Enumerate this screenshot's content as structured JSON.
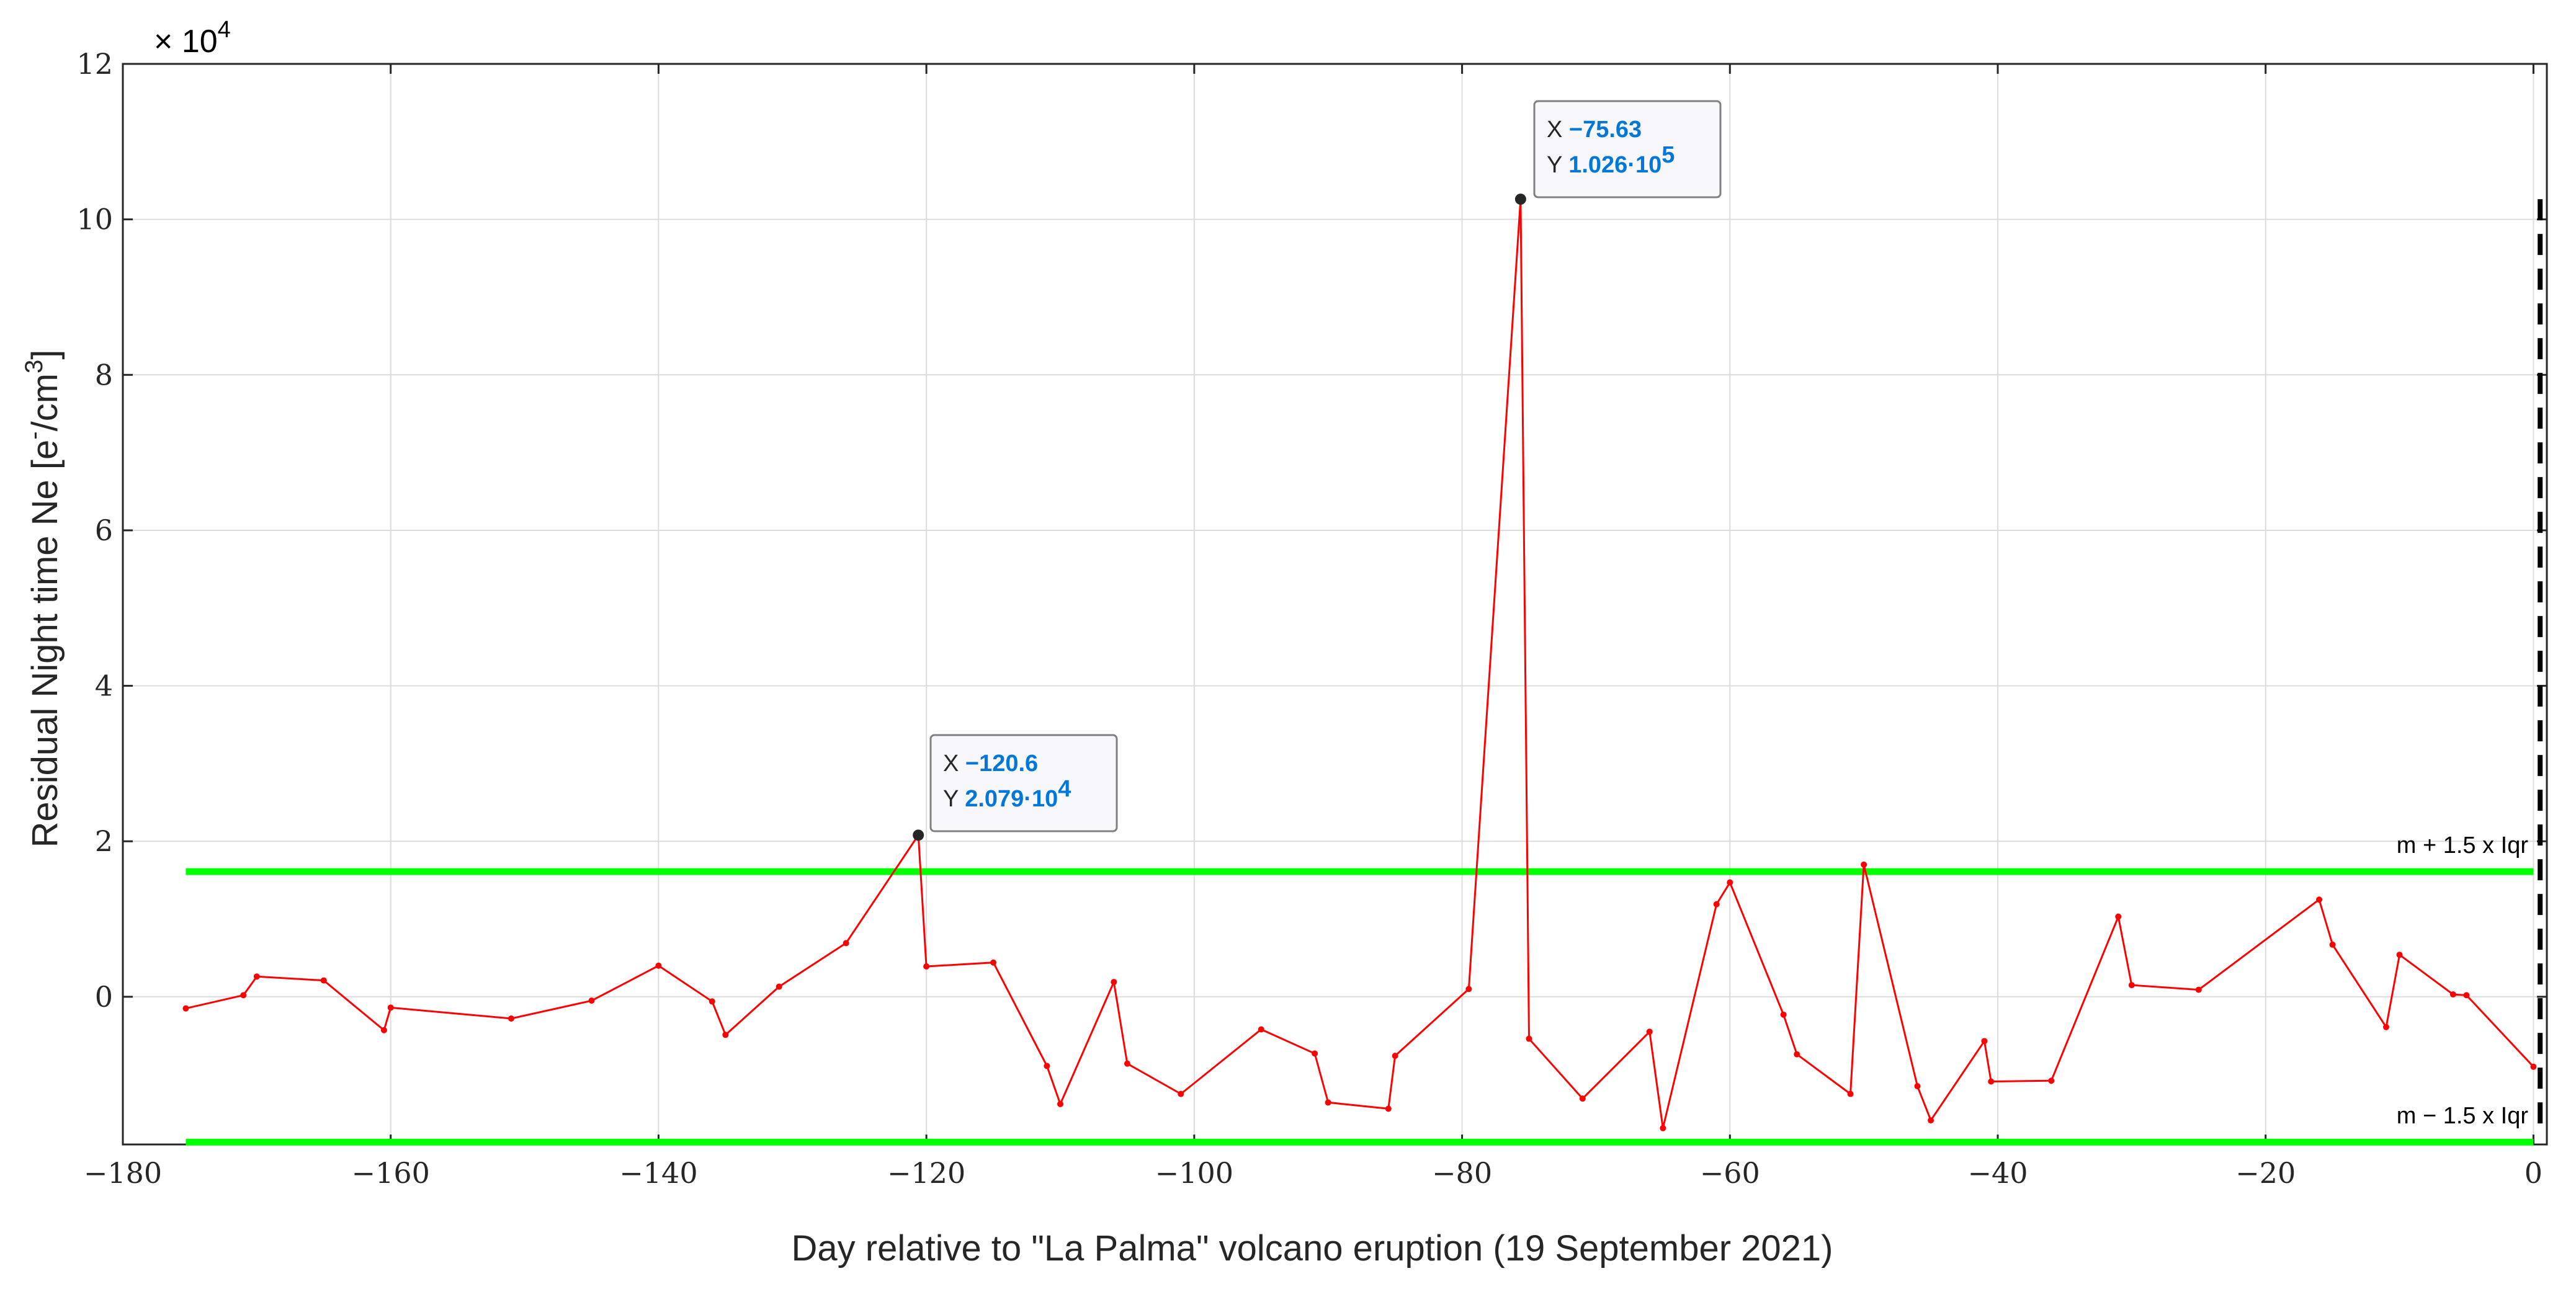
{
  "chart_data": {
    "type": "line",
    "xlabel": "Day relative to \"La Palma\" volcano eruption (19 September 2021)",
    "ylabel_main": "Residual Night time Ne [e",
    "ylabel_sup1": "-",
    "ylabel_mid": "/cm",
    "ylabel_sup2": "3",
    "ylabel_end": "]",
    "y_exponent_prefix": "× 10",
    "y_exponent_power": "4",
    "xlim": [
      -180,
      1
    ],
    "ylim": [
      -19000,
      120000
    ],
    "grid": true,
    "x_ticks": [
      -180,
      -160,
      -140,
      -120,
      -100,
      -80,
      -60,
      -40,
      -20,
      0
    ],
    "x_tick_labels": [
      "−180",
      "−160",
      "−140",
      "−120",
      "−100",
      "−80",
      "−60",
      "−40",
      "−20",
      "0"
    ],
    "y_ticks": [
      0,
      20000,
      40000,
      60000,
      80000,
      100000,
      120000
    ],
    "y_tick_labels": [
      "0",
      "2",
      "4",
      "6",
      "8",
      "10",
      "12"
    ],
    "series": [
      {
        "color": "#ff0000",
        "x": [
          -175.3,
          -171,
          -170,
          -165,
          -160.5,
          -160,
          -151,
          -145,
          -140,
          -136,
          -135,
          -131,
          -126,
          -120.6,
          -120,
          -115,
          -111,
          -110,
          -106,
          -105,
          -101,
          -95,
          -91,
          -90,
          -85.5,
          -85,
          -79.5,
          -75.63,
          -75,
          -71,
          -66,
          -65,
          -61,
          -60,
          -56,
          -55,
          -51,
          -50,
          -46,
          -45,
          -41,
          -40.5,
          -36,
          -31,
          -30,
          -25,
          -16,
          -15,
          -11,
          -10,
          -6,
          -5,
          0
        ],
        "y": [
          -1500,
          200,
          2600,
          2100,
          -4300,
          -1400,
          -2800,
          -500,
          4000,
          -600,
          -4900,
          1300,
          6900,
          20790,
          3900,
          4400,
          -8900,
          -13800,
          1900,
          -8600,
          -12500,
          -4200,
          -7300,
          -13600,
          -14400,
          -7600,
          1000,
          102600,
          -5400,
          -13100,
          -4500,
          -16900,
          11900,
          14700,
          -2300,
          -7400,
          -12500,
          17000,
          -11500,
          -15900,
          -5700,
          -10900,
          -10800,
          10300,
          1500,
          900,
          12500,
          6700,
          -3900,
          5400,
          300,
          200,
          -9000
        ]
      }
    ],
    "reference_lines": [
      {
        "label": "m + 1.5 x Iqr",
        "y": 16100,
        "x_start": -175.3,
        "x_end": 0,
        "color": "#00ff00"
      },
      {
        "label": "m − 1.5 x Iqr",
        "y": -18700,
        "x_start": -175.3,
        "x_end": 0,
        "color": "#00ff00"
      }
    ],
    "eruption_marker": {
      "x": 0.5,
      "y_top": 102600,
      "color": "#000000"
    },
    "datatips": [
      {
        "x_label": "X",
        "x_value": "−120.6",
        "y_label": "Y",
        "y_mantissa": "2.079·10",
        "y_exponent": "4",
        "x": -120.6,
        "y": 20790
      },
      {
        "x_label": "X",
        "x_value": "−75.63",
        "y_label": "Y",
        "y_mantissa": "1.026·10",
        "y_exponent": "5",
        "x": -75.63,
        "y": 102600
      }
    ]
  }
}
